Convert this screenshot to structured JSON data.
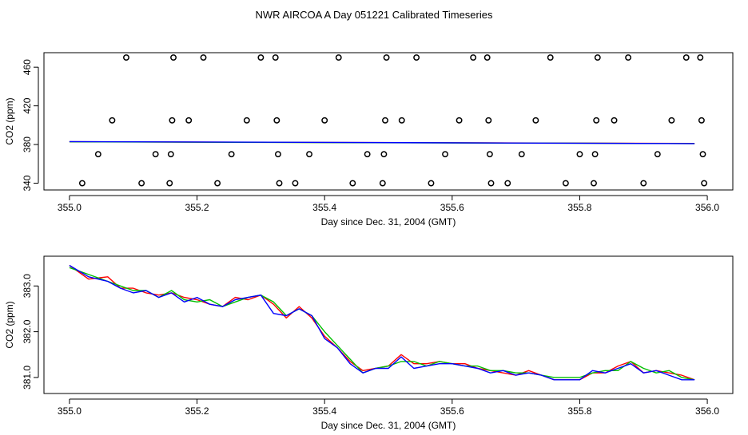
{
  "title": "NWR AIRCOA A  Day 051221  Calibrated Timeseries",
  "chart_data": [
    {
      "type": "scatter",
      "xlabel": "Day since Dec. 31, 2004 (GMT)",
      "ylabel": "CO2 (ppm)",
      "xlim": [
        354.96,
        356.04
      ],
      "ylim": [
        333,
        475
      ],
      "xticks": [
        355.0,
        355.2,
        355.4,
        355.6,
        355.8,
        356.0
      ],
      "xtick_labels": [
        "355.0",
        "355.2",
        "355.4",
        "355.6",
        "355.8",
        "356.0"
      ],
      "yticks": [
        340,
        380,
        420,
        460
      ],
      "ytick_labels": [
        "340",
        "380",
        "420",
        "460"
      ],
      "grid": false,
      "calibration_points": [
        {
          "x": 355.02,
          "y": 340
        },
        {
          "x": 355.045,
          "y": 370
        },
        {
          "x": 355.067,
          "y": 405
        },
        {
          "x": 355.089,
          "y": 470
        },
        {
          "x": 355.113,
          "y": 340
        },
        {
          "x": 355.135,
          "y": 370
        },
        {
          "x": 355.157,
          "y": 340
        },
        {
          "x": 355.159,
          "y": 370
        },
        {
          "x": 355.161,
          "y": 405
        },
        {
          "x": 355.163,
          "y": 470
        },
        {
          "x": 355.187,
          "y": 405
        },
        {
          "x": 355.21,
          "y": 470
        },
        {
          "x": 355.232,
          "y": 340
        },
        {
          "x": 355.254,
          "y": 370
        },
        {
          "x": 355.278,
          "y": 405
        },
        {
          "x": 355.3,
          "y": 470
        },
        {
          "x": 355.323,
          "y": 470
        },
        {
          "x": 355.325,
          "y": 405
        },
        {
          "x": 355.327,
          "y": 370
        },
        {
          "x": 355.329,
          "y": 340
        },
        {
          "x": 355.354,
          "y": 340
        },
        {
          "x": 355.376,
          "y": 370
        },
        {
          "x": 355.4,
          "y": 405
        },
        {
          "x": 355.422,
          "y": 470
        },
        {
          "x": 355.444,
          "y": 340
        },
        {
          "x": 355.467,
          "y": 370
        },
        {
          "x": 355.491,
          "y": 340
        },
        {
          "x": 355.493,
          "y": 370
        },
        {
          "x": 355.495,
          "y": 405
        },
        {
          "x": 355.497,
          "y": 470
        },
        {
          "x": 355.521,
          "y": 405
        },
        {
          "x": 355.544,
          "y": 470
        },
        {
          "x": 355.567,
          "y": 340
        },
        {
          "x": 355.589,
          "y": 370
        },
        {
          "x": 355.611,
          "y": 405
        },
        {
          "x": 355.633,
          "y": 470
        },
        {
          "x": 355.655,
          "y": 470
        },
        {
          "x": 355.657,
          "y": 405
        },
        {
          "x": 355.659,
          "y": 370
        },
        {
          "x": 355.661,
          "y": 340
        },
        {
          "x": 355.687,
          "y": 340
        },
        {
          "x": 355.709,
          "y": 370
        },
        {
          "x": 355.731,
          "y": 405
        },
        {
          "x": 355.754,
          "y": 470
        },
        {
          "x": 355.778,
          "y": 340
        },
        {
          "x": 355.8,
          "y": 370
        },
        {
          "x": 355.822,
          "y": 340
        },
        {
          "x": 355.824,
          "y": 370
        },
        {
          "x": 355.826,
          "y": 405
        },
        {
          "x": 355.828,
          "y": 470
        },
        {
          "x": 355.854,
          "y": 405
        },
        {
          "x": 355.876,
          "y": 470
        },
        {
          "x": 355.9,
          "y": 340
        },
        {
          "x": 355.922,
          "y": 370
        },
        {
          "x": 355.944,
          "y": 405
        },
        {
          "x": 355.967,
          "y": 470
        },
        {
          "x": 355.989,
          "y": 470
        },
        {
          "x": 355.991,
          "y": 405
        },
        {
          "x": 355.993,
          "y": 370
        },
        {
          "x": 355.995,
          "y": 340
        }
      ],
      "series": [
        {
          "color": "#ff0000",
          "x": [
            355.0,
            355.98
          ],
          "y": [
            382.9,
            381.1
          ]
        },
        {
          "color": "#00c000",
          "x": [
            355.0,
            355.98
          ],
          "y": [
            382.8,
            381.0
          ]
        },
        {
          "color": "#0000ff",
          "x": [
            355.0,
            355.98
          ],
          "y": [
            383.0,
            381.0
          ]
        }
      ]
    },
    {
      "type": "line",
      "xlabel": "Day since Dec. 31, 2004 (GMT)",
      "ylabel": "CO2 (ppm)",
      "xlim": [
        354.96,
        356.04
      ],
      "ylim": [
        380.65,
        383.65
      ],
      "xticks": [
        355.0,
        355.2,
        355.4,
        355.6,
        355.8,
        356.0
      ],
      "xtick_labels": [
        "355.0",
        "355.2",
        "355.4",
        "355.6",
        "355.8",
        "356.0"
      ],
      "yticks": [
        381.0,
        382.0,
        383.0
      ],
      "ytick_labels": [
        "381.0",
        "382.0",
        "383.0"
      ],
      "grid": false,
      "series": [
        {
          "color": "#ff0000",
          "x": [
            355.0,
            355.03,
            355.06,
            355.08,
            355.1,
            355.12,
            355.14,
            355.16,
            355.18,
            355.2,
            355.22,
            355.24,
            355.26,
            355.28,
            355.3,
            355.32,
            355.34,
            355.36,
            355.38,
            355.4,
            355.42,
            355.44,
            355.46,
            355.48,
            355.5,
            355.52,
            355.54,
            355.56,
            355.58,
            355.6,
            355.62,
            355.64,
            355.66,
            355.68,
            355.7,
            355.72,
            355.74,
            355.76,
            355.78,
            355.8,
            355.82,
            355.84,
            355.86,
            355.88,
            355.9,
            355.92,
            355.94,
            355.96,
            355.98
          ],
          "y": [
            383.45,
            383.15,
            383.2,
            382.95,
            382.95,
            382.85,
            382.8,
            382.85,
            382.75,
            382.7,
            382.6,
            382.55,
            382.75,
            382.7,
            382.8,
            382.6,
            382.3,
            382.55,
            382.3,
            381.9,
            381.65,
            381.35,
            381.15,
            381.2,
            381.25,
            381.5,
            381.3,
            381.3,
            381.35,
            381.3,
            381.3,
            381.2,
            381.15,
            381.1,
            381.05,
            381.15,
            381.05,
            380.95,
            380.95,
            380.95,
            381.1,
            381.1,
            381.25,
            381.35,
            381.1,
            381.15,
            381.1,
            381.05,
            380.95
          ]
        },
        {
          "color": "#00c000",
          "x": [
            355.0,
            355.03,
            355.06,
            355.08,
            355.1,
            355.12,
            355.14,
            355.16,
            355.18,
            355.2,
            355.22,
            355.24,
            355.26,
            355.28,
            355.3,
            355.32,
            355.34,
            355.36,
            355.38,
            355.4,
            355.42,
            355.44,
            355.46,
            355.48,
            355.5,
            355.52,
            355.54,
            355.56,
            355.58,
            355.6,
            355.62,
            355.64,
            355.66,
            355.68,
            355.7,
            355.72,
            355.74,
            355.76,
            355.78,
            355.8,
            355.82,
            355.84,
            355.86,
            355.88,
            355.9,
            355.92,
            355.94,
            355.96,
            355.98
          ],
          "y": [
            383.4,
            383.25,
            383.1,
            383.0,
            382.9,
            382.9,
            382.75,
            382.9,
            382.7,
            382.65,
            382.7,
            382.55,
            382.65,
            382.75,
            382.8,
            382.65,
            382.35,
            382.5,
            382.35,
            382.0,
            381.7,
            381.4,
            381.1,
            381.2,
            381.25,
            381.35,
            381.35,
            381.25,
            381.35,
            381.3,
            381.25,
            381.25,
            381.15,
            381.15,
            381.1,
            381.1,
            381.05,
            381.0,
            381.0,
            381.0,
            381.1,
            381.15,
            381.15,
            381.35,
            381.2,
            381.1,
            381.15,
            381.0,
            380.95
          ]
        },
        {
          "color": "#0000ff",
          "x": [
            355.0,
            355.03,
            355.06,
            355.08,
            355.1,
            355.12,
            355.14,
            355.16,
            355.18,
            355.2,
            355.22,
            355.24,
            355.26,
            355.28,
            355.3,
            355.32,
            355.34,
            355.36,
            355.38,
            355.4,
            355.42,
            355.44,
            355.46,
            355.48,
            355.5,
            355.52,
            355.54,
            355.56,
            355.58,
            355.6,
            355.62,
            355.64,
            355.66,
            355.68,
            355.7,
            355.72,
            355.74,
            355.76,
            355.78,
            355.8,
            355.82,
            355.84,
            355.86,
            355.88,
            355.9,
            355.92,
            355.94,
            355.96,
            355.98
          ],
          "y": [
            383.45,
            383.2,
            383.1,
            382.95,
            382.85,
            382.9,
            382.75,
            382.85,
            382.65,
            382.75,
            382.6,
            382.55,
            382.7,
            382.75,
            382.8,
            382.4,
            382.35,
            382.5,
            382.35,
            381.85,
            381.65,
            381.3,
            381.1,
            381.2,
            381.2,
            381.45,
            381.2,
            381.25,
            381.3,
            381.3,
            381.25,
            381.2,
            381.1,
            381.15,
            381.05,
            381.1,
            381.05,
            380.95,
            380.95,
            380.95,
            381.15,
            381.1,
            381.2,
            381.3,
            381.1,
            381.15,
            381.05,
            380.95,
            380.95
          ]
        }
      ]
    }
  ]
}
